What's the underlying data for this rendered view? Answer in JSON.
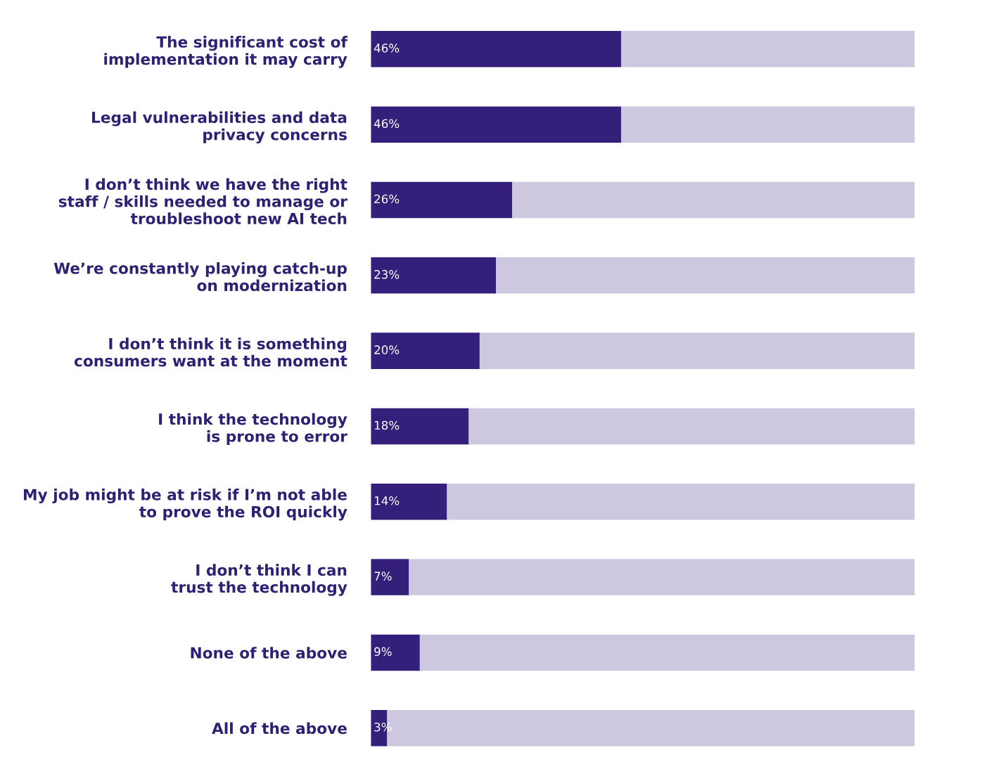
{
  "chart_data": {
    "type": "bar",
    "orientation": "horizontal",
    "stacked": true,
    "categories": [
      "The significant cost of\nimplementation it may carry",
      "Legal vulnerabilities and data\nprivacy concerns",
      "I don’t think we have the right\nstaff / skills needed to manage or\ntroubleshoot new AI tech",
      "We’re constantly playing catch-up\non modernization",
      "I don’t think it is something\nconsumers want at the moment",
      "I think the technology\nis prone to error",
      "My job might be at risk if I’m not able\nto prove the ROI quickly",
      "I don’t think I can\ntrust the technology",
      "None of the above",
      "All of the above"
    ],
    "series": [
      {
        "color": "#341f7a",
        "values": [
          46,
          46,
          26,
          23,
          20,
          18,
          14,
          7,
          9,
          3
        ],
        "value_labels": [
          "46%",
          "46%",
          "26%",
          "23%",
          "20%",
          "18%",
          "14%",
          "7%",
          "9%",
          "3%"
        ]
      },
      {
        "color": "#cdc7e0",
        "values": [
          54,
          54,
          74,
          77,
          80,
          82,
          86,
          93,
          91,
          97
        ]
      }
    ],
    "xlim": [
      0,
      100
    ],
    "tick_labels": "y"
  }
}
